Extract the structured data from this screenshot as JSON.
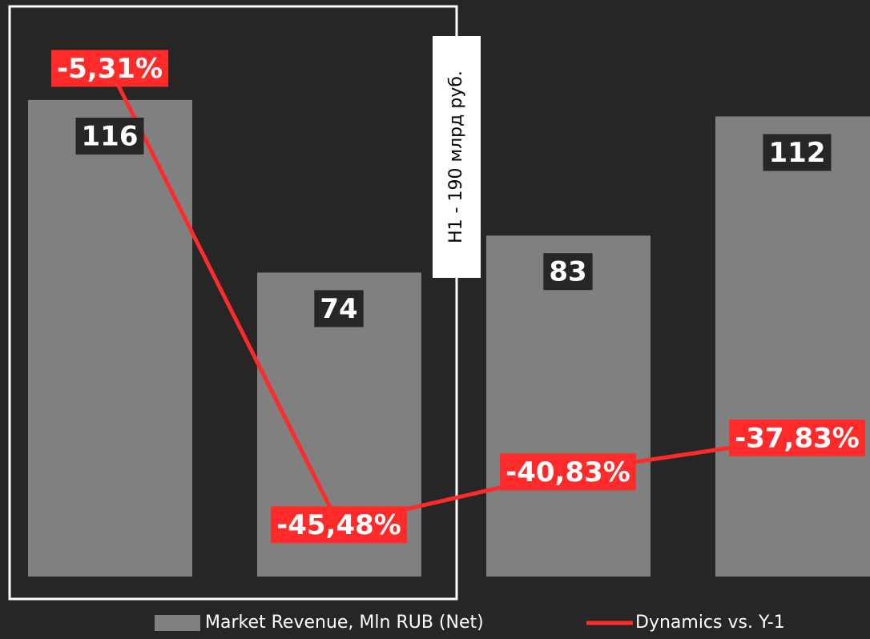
{
  "chart_data": {
    "type": "bar",
    "categories": [
      null,
      null,
      null,
      null
    ],
    "series": [
      {
        "name": "Market Revenue, Mln RUB (Net)",
        "type": "bar",
        "color": "#808080",
        "values": [
          116,
          74,
          83,
          112
        ]
      },
      {
        "name": "Dynamics vs. Y-1",
        "type": "line",
        "axis": "y2",
        "color": "#ff2a2a",
        "values": [
          -5.31,
          -45.48,
          -40.83,
          -37.83
        ],
        "value_labels": [
          "-5,31%",
          "-45,48%",
          "-40,83%",
          "-37,83%"
        ]
      }
    ],
    "annotations": [
      "H1 - 190 млрд руб."
    ]
  }
}
